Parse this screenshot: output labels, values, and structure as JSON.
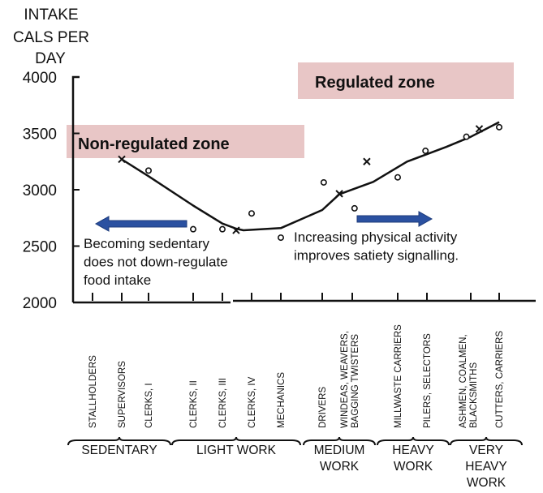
{
  "chart_data": {
    "type": "scatter",
    "title": "",
    "ylabel_lines": [
      "INTAKE",
      "CALS PER",
      "DAY"
    ],
    "xlabel": "",
    "ylim": [
      2000,
      4000
    ],
    "yticks": [
      "4000",
      "3500",
      "3000",
      "2500",
      "2000"
    ],
    "ytick_values": [
      4000,
      3500,
      3000,
      2500,
      2000
    ],
    "grid": false,
    "categories": [
      [
        "STALLHOLDERS"
      ],
      [
        "SUPERVISORS"
      ],
      [
        "CLERKS, I"
      ],
      [
        "CLERKS, II"
      ],
      [
        "CLERKS, III"
      ],
      [
        "CLERKS, IV"
      ],
      [
        "MECHANICS"
      ],
      [
        "DRIVERS"
      ],
      [
        "WINDEAS, WEAVERS,",
        "BAGGING TWISTERS"
      ],
      [
        "MILLWASTE CARRIERS"
      ],
      [
        "PILERS, SELECTORS"
      ],
      [
        "ASHMEN, COALMEN,",
        "BLACKSMITHS"
      ],
      [
        "CUTTERS, CARRIERS"
      ]
    ],
    "groups": [
      {
        "label": [
          "SEDENTARY"
        ],
        "from": 0,
        "to": 2
      },
      {
        "label": [
          "LIGHT WORK"
        ],
        "from": 3,
        "to": 6
      },
      {
        "label": [
          "MEDIUM",
          "WORK"
        ],
        "from": 7,
        "to": 8
      },
      {
        "label": [
          "HEAVY",
          "WORK"
        ],
        "from": 9,
        "to": 10
      },
      {
        "label": [
          "VERY",
          "HEAVY",
          "WORK"
        ],
        "from": 11,
        "to": 12
      }
    ],
    "series": [
      {
        "name": "circles",
        "marker": "o",
        "points": [
          [
            2,
            3170
          ],
          [
            3,
            2650
          ],
          [
            4,
            2650
          ],
          [
            5,
            2790
          ],
          [
            6,
            2575
          ],
          [
            7.05,
            3065
          ],
          [
            8.05,
            2835
          ],
          [
            9,
            3110
          ],
          [
            9.95,
            3345
          ],
          [
            10.9,
            3470
          ],
          [
            12,
            3555
          ]
        ]
      },
      {
        "name": "crosses",
        "marker": "x",
        "points": [
          [
            1,
            3270
          ],
          [
            4.47,
            2640
          ],
          [
            7.57,
            2965
          ],
          [
            8.32,
            3250
          ],
          [
            11.3,
            3540
          ]
        ]
      },
      {
        "name": "trend",
        "marker": "line",
        "points": [
          [
            1,
            3270
          ],
          [
            2,
            3120
          ],
          [
            3,
            2860
          ],
          [
            4,
            2700
          ],
          [
            4.47,
            2655
          ],
          [
            4.72,
            2640
          ],
          [
            6,
            2660
          ],
          [
            7,
            2820
          ],
          [
            7.57,
            2960
          ],
          [
            8.46,
            3070
          ],
          [
            9.32,
            3250
          ],
          [
            10.44,
            3380
          ],
          [
            11,
            3470
          ],
          [
            12,
            3600
          ]
        ]
      }
    ],
    "zones": [
      {
        "label": "Non-regulated zone",
        "color": "#e8c6c6"
      },
      {
        "label": "Regulated zone",
        "color": "#e8c6c6"
      }
    ],
    "annotations": [
      {
        "lines": [
          "Becoming sedentary",
          "does not down-regulate",
          "food intake"
        ],
        "arrow": "left"
      },
      {
        "lines": [
          "Increasing physical activity",
          "improves satiety signalling."
        ],
        "arrow": "right"
      }
    ],
    "arrow_color": "#2b51a1"
  }
}
